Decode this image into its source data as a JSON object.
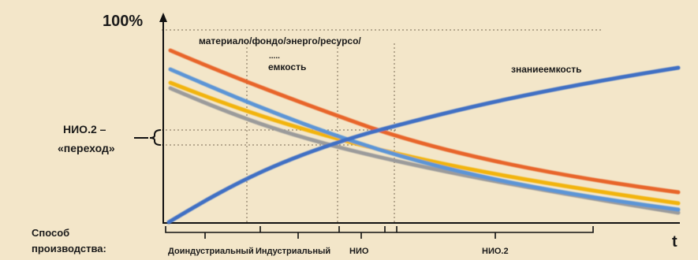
{
  "diagram": {
    "y_top_label": "100%",
    "x_axis_label": "t",
    "resource_label_line1": "материало/фондо/энерго/ресурсо/",
    "resource_label_dots": ".....",
    "resource_label_line2": "емкость",
    "knowledge_label": "знаниеемкость",
    "transition_label_line1": "НИО.2 –",
    "transition_label_line2": "«переход»",
    "mode_label_line1": "Способ",
    "mode_label_line2": "производства:",
    "eras": [
      "Доиндустриальный",
      "Индустриальный",
      "НИО",
      "НИО.2"
    ]
  },
  "colors": {
    "background": "#f3e6c9",
    "orange": "#e8652c",
    "light_blue": "#5b95d6",
    "yellow": "#f2b40c",
    "gray": "#9b9b9b",
    "dark_blue": "#3f6fc4"
  },
  "curves": [
    {
      "name": "orange-line",
      "color": "orange",
      "trend": "decreasing"
    },
    {
      "name": "light-blue-line",
      "color": "light_blue",
      "trend": "decreasing"
    },
    {
      "name": "yellow-line",
      "color": "yellow",
      "trend": "decreasing"
    },
    {
      "name": "gray-line",
      "color": "gray",
      "trend": "decreasing"
    },
    {
      "name": "knowledge-line",
      "color": "dark_blue",
      "trend": "increasing"
    }
  ]
}
